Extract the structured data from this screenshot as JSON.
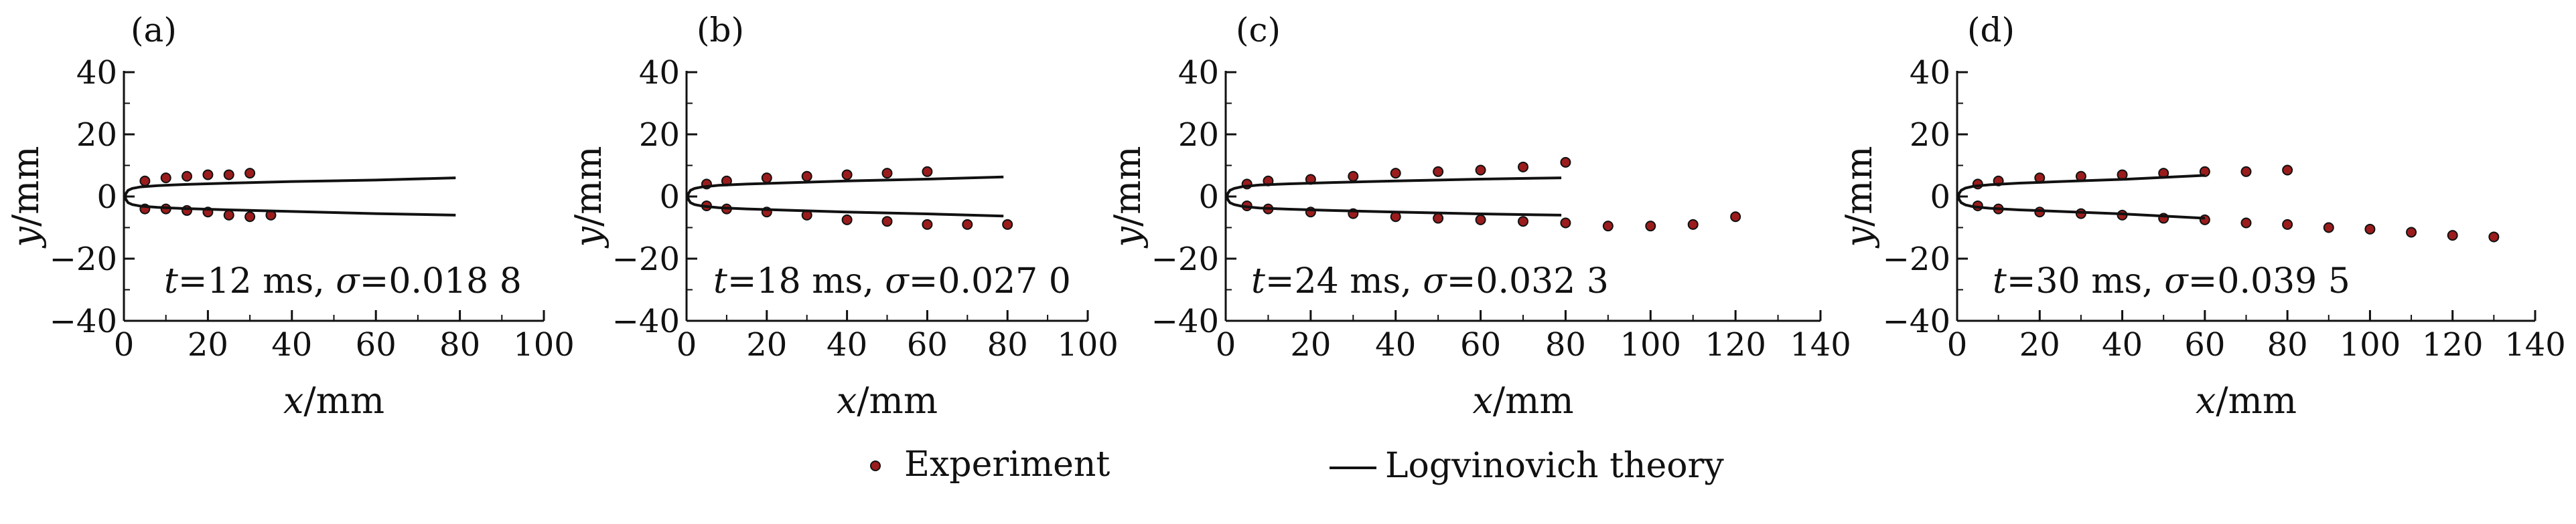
{
  "legend": {
    "experiment_label": "Experiment",
    "theory_label": "Logvinovich theory"
  },
  "colors": {
    "marker_fill": "#9b1c1c",
    "marker_stroke": "#111111",
    "axis": "#111111",
    "line": "#111111"
  },
  "chart_data": [
    {
      "type": "scatter",
      "panel": "(a)",
      "xlabel_var": "x",
      "xlabel_unit": "/mm",
      "ylabel_var": "y",
      "ylabel_unit": "/mm",
      "annotation": "t=12 ms, σ=0.018 8",
      "xlim": [
        0,
        100
      ],
      "ylim": [
        -40,
        40
      ],
      "xticks": [
        0,
        20,
        40,
        60,
        80,
        100
      ],
      "yticks": [
        -40,
        -20,
        0,
        20,
        40
      ],
      "series": [
        {
          "name": "Experiment",
          "kind": "scatter",
          "points": [
            [
              5,
              5
            ],
            [
              10,
              6
            ],
            [
              15,
              6.5
            ],
            [
              20,
              7
            ],
            [
              25,
              7
            ],
            [
              30,
              7.5
            ],
            [
              5,
              -4
            ],
            [
              10,
              -4
            ],
            [
              15,
              -4.5
            ],
            [
              20,
              -5
            ],
            [
              25,
              -6
            ],
            [
              30,
              -6.5
            ],
            [
              35,
              -6
            ]
          ]
        },
        {
          "name": "Logvinovich theory",
          "kind": "line",
          "upper": [
            [
              0.3,
              0
            ],
            [
              0.5,
              1
            ],
            [
              1,
              2
            ],
            [
              2,
              2.6
            ],
            [
              4,
              3.1
            ],
            [
              8,
              3.5
            ],
            [
              15,
              3.9
            ],
            [
              25,
              4.3
            ],
            [
              40,
              4.8
            ],
            [
              60,
              5.3
            ],
            [
              79,
              6
            ]
          ],
          "lower": [
            [
              0.3,
              0
            ],
            [
              0.5,
              -1
            ],
            [
              1,
              -2
            ],
            [
              2,
              -2.6
            ],
            [
              4,
              -3.1
            ],
            [
              8,
              -3.5
            ],
            [
              15,
              -3.9
            ],
            [
              25,
              -4.3
            ],
            [
              40,
              -4.8
            ],
            [
              60,
              -5.5
            ],
            [
              79,
              -6
            ]
          ]
        }
      ]
    },
    {
      "type": "scatter",
      "panel": "(b)",
      "xlabel_var": "x",
      "xlabel_unit": "/mm",
      "ylabel_var": "y",
      "ylabel_unit": "/mm",
      "annotation": "t=18 ms, σ=0.027 0",
      "xlim": [
        0,
        100
      ],
      "ylim": [
        -40,
        40
      ],
      "xticks": [
        0,
        20,
        40,
        60,
        80,
        100
      ],
      "yticks": [
        -40,
        -20,
        0,
        20,
        40
      ],
      "series": [
        {
          "name": "Experiment",
          "kind": "scatter",
          "points": [
            [
              5,
              4
            ],
            [
              10,
              5
            ],
            [
              20,
              6
            ],
            [
              30,
              6.5
            ],
            [
              40,
              7
            ],
            [
              50,
              7.5
            ],
            [
              60,
              8
            ],
            [
              5,
              -3
            ],
            [
              10,
              -4
            ],
            [
              20,
              -5
            ],
            [
              30,
              -6
            ],
            [
              40,
              -7.5
            ],
            [
              50,
              -8
            ],
            [
              60,
              -9
            ],
            [
              70,
              -9
            ],
            [
              80,
              -9
            ]
          ]
        },
        {
          "name": "Logvinovich theory",
          "kind": "line",
          "upper": [
            [
              0.3,
              0
            ],
            [
              0.5,
              1
            ],
            [
              1,
              2
            ],
            [
              2,
              2.6
            ],
            [
              4,
              3.1
            ],
            [
              8,
              3.6
            ],
            [
              15,
              4
            ],
            [
              25,
              4.4
            ],
            [
              40,
              5
            ],
            [
              60,
              5.6
            ],
            [
              79,
              6.3
            ]
          ],
          "lower": [
            [
              0.3,
              0
            ],
            [
              0.5,
              -1
            ],
            [
              1,
              -2
            ],
            [
              2,
              -2.6
            ],
            [
              4,
              -3.1
            ],
            [
              8,
              -3.6
            ],
            [
              15,
              -4
            ],
            [
              25,
              -4.4
            ],
            [
              40,
              -5
            ],
            [
              60,
              -5.6
            ],
            [
              79,
              -6.3
            ]
          ]
        }
      ]
    },
    {
      "type": "scatter",
      "panel": "(c)",
      "xlabel_var": "x",
      "xlabel_unit": "/mm",
      "ylabel_var": "y",
      "ylabel_unit": "/mm",
      "annotation": "t=24 ms, σ=0.032 3",
      "xlim": [
        0,
        140
      ],
      "ylim": [
        -40,
        40
      ],
      "xticks": [
        0,
        20,
        40,
        60,
        80,
        100,
        120,
        140
      ],
      "yticks": [
        -40,
        -20,
        0,
        20,
        40
      ],
      "series": [
        {
          "name": "Experiment",
          "kind": "scatter",
          "points": [
            [
              5,
              4
            ],
            [
              10,
              5
            ],
            [
              20,
              5.5
            ],
            [
              30,
              6.5
            ],
            [
              40,
              7.5
            ],
            [
              50,
              8
            ],
            [
              60,
              8.5
            ],
            [
              70,
              9.5
            ],
            [
              80,
              11
            ],
            [
              5,
              -3
            ],
            [
              10,
              -4
            ],
            [
              20,
              -5
            ],
            [
              30,
              -5.5
            ],
            [
              40,
              -6.5
            ],
            [
              50,
              -7
            ],
            [
              60,
              -7.5
            ],
            [
              70,
              -8
            ],
            [
              80,
              -8.5
            ],
            [
              90,
              -9.5
            ],
            [
              100,
              -9.5
            ],
            [
              110,
              -9
            ],
            [
              120,
              -6.5
            ]
          ]
        },
        {
          "name": "Logvinovich theory",
          "kind": "line",
          "upper": [
            [
              0.3,
              0
            ],
            [
              0.5,
              1
            ],
            [
              1,
              2
            ],
            [
              2,
              2.6
            ],
            [
              4,
              3.2
            ],
            [
              8,
              3.7
            ],
            [
              15,
              4.1
            ],
            [
              25,
              4.5
            ],
            [
              40,
              5
            ],
            [
              60,
              5.6
            ],
            [
              79,
              6
            ]
          ],
          "lower": [
            [
              0.3,
              0
            ],
            [
              0.5,
              -1
            ],
            [
              1,
              -2
            ],
            [
              2,
              -2.6
            ],
            [
              4,
              -3.2
            ],
            [
              8,
              -3.7
            ],
            [
              15,
              -4.1
            ],
            [
              25,
              -4.5
            ],
            [
              40,
              -5
            ],
            [
              60,
              -5.6
            ],
            [
              79,
              -6
            ]
          ]
        }
      ]
    },
    {
      "type": "scatter",
      "panel": "(d)",
      "xlabel_var": "x",
      "xlabel_unit": "/mm",
      "ylabel_var": "y",
      "ylabel_unit": "/mm",
      "annotation": "t=30 ms, σ=0.039 5",
      "xlim": [
        0,
        140
      ],
      "ylim": [
        -40,
        40
      ],
      "xticks": [
        0,
        20,
        40,
        60,
        80,
        100,
        120,
        140
      ],
      "yticks": [
        -40,
        -20,
        0,
        20,
        40
      ],
      "series": [
        {
          "name": "Experiment",
          "kind": "scatter",
          "points": [
            [
              5,
              4
            ],
            [
              10,
              5
            ],
            [
              20,
              6
            ],
            [
              30,
              6.5
            ],
            [
              40,
              7
            ],
            [
              50,
              7.5
            ],
            [
              60,
              8
            ],
            [
              70,
              8
            ],
            [
              80,
              8.5
            ],
            [
              5,
              -3
            ],
            [
              10,
              -4
            ],
            [
              20,
              -5
            ],
            [
              30,
              -5.5
            ],
            [
              40,
              -6
            ],
            [
              50,
              -7
            ],
            [
              60,
              -7.5
            ],
            [
              70,
              -8.5
            ],
            [
              80,
              -9
            ],
            [
              90,
              -10
            ],
            [
              100,
              -10.5
            ],
            [
              110,
              -11.5
            ],
            [
              120,
              -12.5
            ],
            [
              130,
              -13
            ]
          ]
        },
        {
          "name": "Logvinovich theory",
          "kind": "line",
          "upper": [
            [
              0.3,
              0
            ],
            [
              0.5,
              1
            ],
            [
              1,
              2
            ],
            [
              2,
              2.7
            ],
            [
              4,
              3.3
            ],
            [
              8,
              3.8
            ],
            [
              15,
              4.3
            ],
            [
              25,
              4.8
            ],
            [
              40,
              5.5
            ],
            [
              60,
              6.8
            ]
          ],
          "lower": [
            [
              0.3,
              0
            ],
            [
              0.5,
              -1
            ],
            [
              1,
              -2
            ],
            [
              2,
              -2.7
            ],
            [
              4,
              -3.3
            ],
            [
              8,
              -3.8
            ],
            [
              15,
              -4.3
            ],
            [
              25,
              -4.8
            ],
            [
              40,
              -5.6
            ],
            [
              60,
              -7
            ]
          ]
        }
      ]
    }
  ]
}
